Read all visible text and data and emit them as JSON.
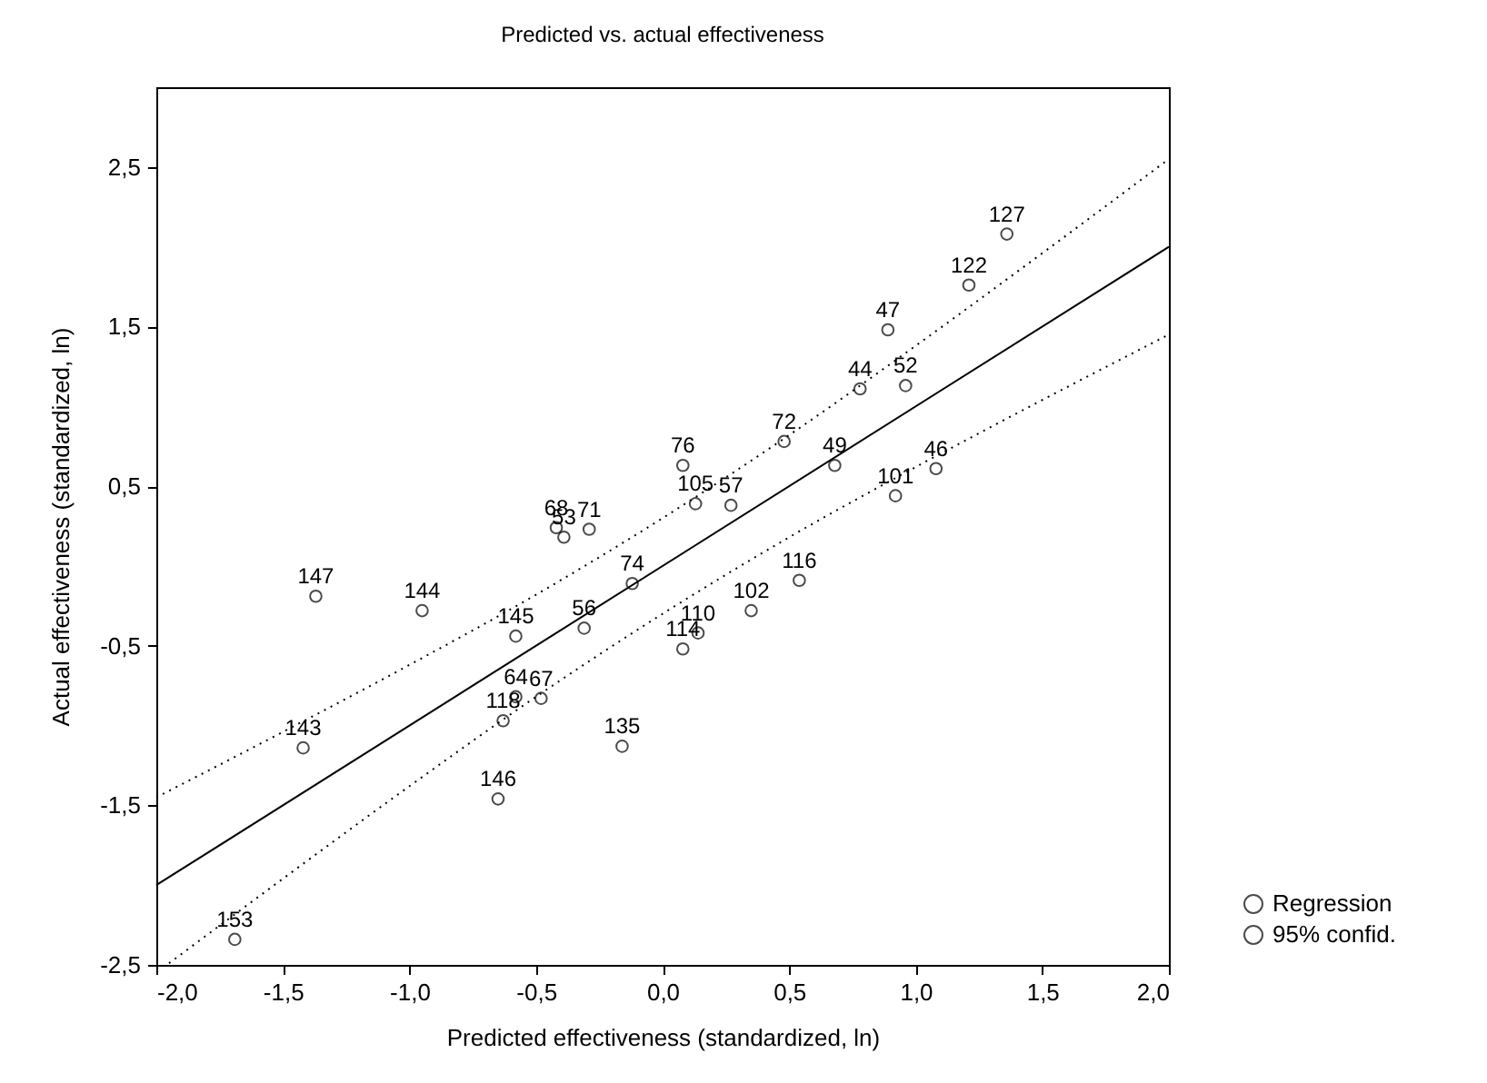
{
  "chart_data": {
    "type": "scatter",
    "title": "Predicted vs. actual effectiveness",
    "xlabel": "Predicted effectiveness (standardized, ln)",
    "ylabel": "Actual effectiveness (standardized, ln)",
    "xlim": [
      -2.0,
      2.0
    ],
    "ylim": [
      -2.5,
      3.0
    ],
    "xticks": [
      {
        "value": -2.0,
        "label": "-2,0"
      },
      {
        "value": -1.5,
        "label": "-1,5"
      },
      {
        "value": -1.0,
        "label": "-1,0"
      },
      {
        "value": -0.5,
        "label": "-0,5"
      },
      {
        "value": 0.0,
        "label": "0,0"
      },
      {
        "value": 0.5,
        "label": "0,5"
      },
      {
        "value": 1.0,
        "label": "1,0"
      },
      {
        "value": 1.5,
        "label": "1,5"
      },
      {
        "value": 2.0,
        "label": "2,0"
      }
    ],
    "yticks": [
      {
        "value": -2.5,
        "label": "-2,5"
      },
      {
        "value": -1.5,
        "label": "-1,5"
      },
      {
        "value": -0.5,
        "label": "-0,5"
      },
      {
        "value": 0.5,
        "label": "0,5"
      },
      {
        "value": 1.5,
        "label": "1,5"
      },
      {
        "value": 2.5,
        "label": "2,5"
      }
    ],
    "legend": "bottom right",
    "series": [
      {
        "name": "Regression",
        "marker": "circle",
        "color": "#000000",
        "x": [
          -1.37,
          -0.95,
          -0.58,
          -0.31,
          -0.12,
          -0.42,
          -0.39,
          -0.29,
          0.08,
          0.13,
          0.27,
          0.14,
          0.08,
          0.35,
          1.36,
          1.21,
          0.89,
          0.78,
          0.96,
          0.48,
          0.68,
          1.08,
          0.92,
          0.54,
          -0.58,
          -0.48,
          -0.63,
          -1.42,
          -0.16,
          -0.65,
          -1.69
        ],
        "values": [
          -0.19,
          -0.28,
          -0.44,
          -0.39,
          -0.11,
          0.24,
          0.18,
          0.23,
          0.63,
          0.39,
          0.38,
          -0.42,
          -0.52,
          -0.28,
          2.08,
          1.76,
          1.48,
          1.11,
          1.13,
          0.78,
          0.63,
          0.61,
          0.44,
          -0.09,
          -0.82,
          -0.83,
          -0.97,
          -1.14,
          -1.13,
          -1.46,
          -2.34
        ]
      },
      {
        "type": "line",
        "color": "#000000",
        "line_style": "solid",
        "x": [
          -2.0,
          2.0
        ],
        "values": [
          -2.0,
          2.0
        ]
      },
      {
        "name": "95% confid.",
        "type": "line",
        "color": "#000000",
        "line_style": "dotted",
        "x": [
          -2.0,
          -1.5,
          -1.0,
          -0.5,
          0.0,
          0.5,
          1.0,
          1.5,
          2.0
        ],
        "values": [
          -1.45,
          -1.04,
          -0.62,
          -0.18,
          0.3,
          0.82,
          1.38,
          1.96,
          2.55
        ]
      },
      {
        "type": "line",
        "color": "#000000",
        "line_style": "dotted",
        "x": [
          -1.95,
          -1.5,
          -1.0,
          -0.5,
          0.0,
          0.5,
          1.0,
          1.5,
          2.0
        ],
        "values": [
          -2.49,
          -1.96,
          -1.38,
          -0.82,
          -0.3,
          0.18,
          0.62,
          1.04,
          1.45
        ]
      }
    ],
    "annotations": [
      {
        "text": "147",
        "x": -1.37,
        "y": -0.19
      },
      {
        "text": "144",
        "x": -0.95,
        "y": -0.28
      },
      {
        "text": "145",
        "x": -0.58,
        "y": -0.44
      },
      {
        "text": "56",
        "x": -0.31,
        "y": -0.39
      },
      {
        "text": "74",
        "x": -0.12,
        "y": -0.11
      },
      {
        "text": "68",
        "x": -0.42,
        "y": 0.24
      },
      {
        "text": "53",
        "x": -0.39,
        "y": 0.18
      },
      {
        "text": "71",
        "x": -0.29,
        "y": 0.23
      },
      {
        "text": "76",
        "x": 0.08,
        "y": 0.63
      },
      {
        "text": "105",
        "x": 0.13,
        "y": 0.39
      },
      {
        "text": "57",
        "x": 0.27,
        "y": 0.38
      },
      {
        "text": "110",
        "x": 0.14,
        "y": -0.42
      },
      {
        "text": "114",
        "x": 0.08,
        "y": -0.52
      },
      {
        "text": "102",
        "x": 0.35,
        "y": -0.28
      },
      {
        "text": "127",
        "x": 1.36,
        "y": 2.08
      },
      {
        "text": "122",
        "x": 1.21,
        "y": 1.76
      },
      {
        "text": "47",
        "x": 0.89,
        "y": 1.48
      },
      {
        "text": "44",
        "x": 0.78,
        "y": 1.11
      },
      {
        "text": "52",
        "x": 0.96,
        "y": 1.13
      },
      {
        "text": "72",
        "x": 0.48,
        "y": 0.78
      },
      {
        "text": "49",
        "x": 0.68,
        "y": 0.63
      },
      {
        "text": "46",
        "x": 1.08,
        "y": 0.61
      },
      {
        "text": "101",
        "x": 0.92,
        "y": 0.44
      },
      {
        "text": "116",
        "x": 0.54,
        "y": -0.09
      },
      {
        "text": "64",
        "x": -0.58,
        "y": -0.82
      },
      {
        "text": "67",
        "x": -0.48,
        "y": -0.83
      },
      {
        "text": "118",
        "x": -0.63,
        "y": -0.97
      },
      {
        "text": "143",
        "x": -1.42,
        "y": -1.14
      },
      {
        "text": "135",
        "x": -0.16,
        "y": -1.13
      },
      {
        "text": "146",
        "x": -0.65,
        "y": -1.46
      },
      {
        "text": "153",
        "x": -1.69,
        "y": -2.34
      }
    ]
  }
}
